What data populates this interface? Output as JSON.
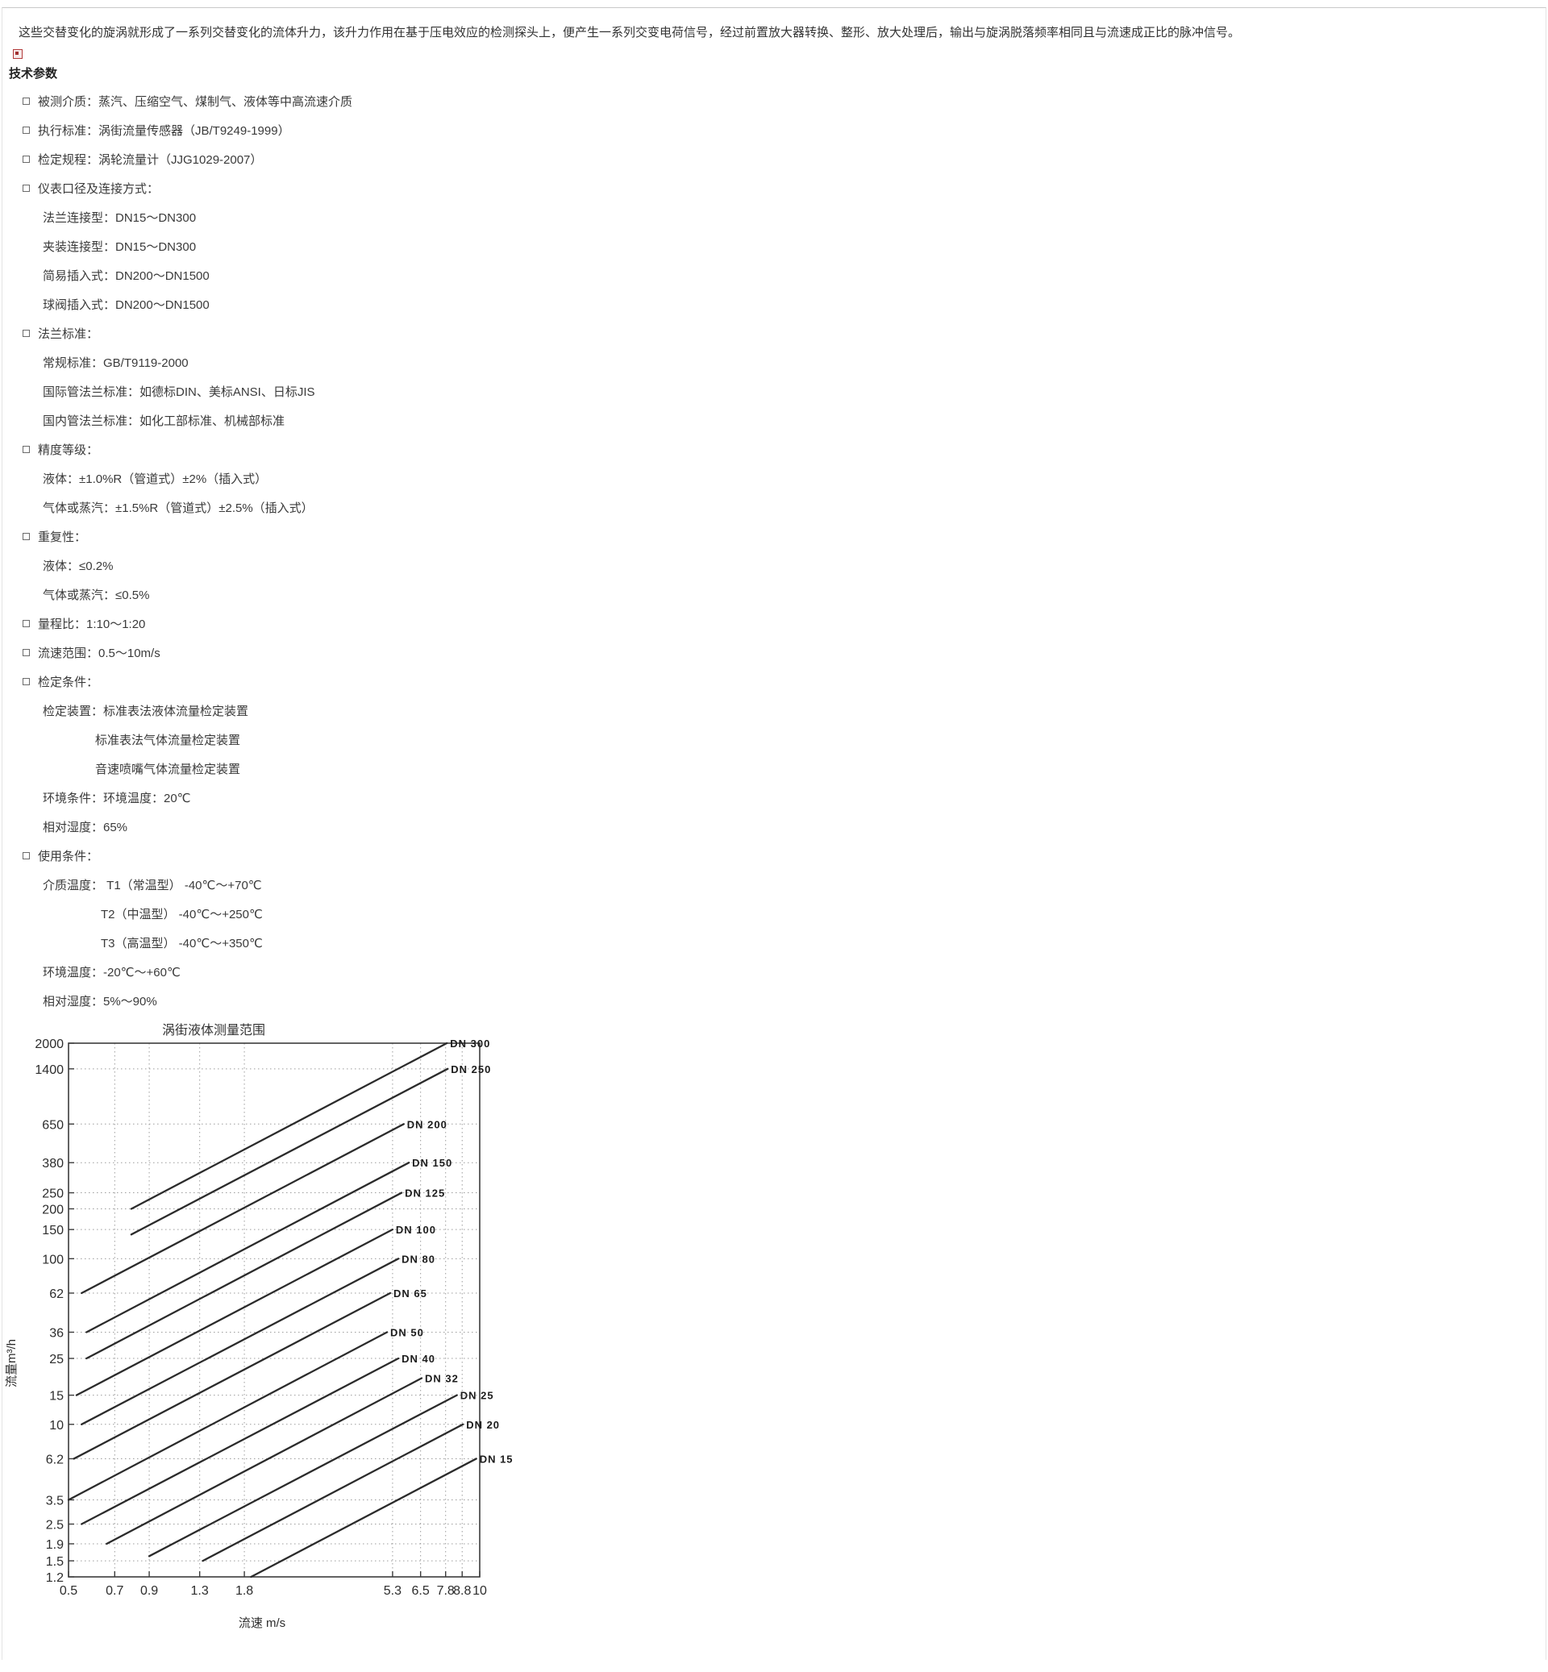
{
  "page": {
    "intro": "这些交替变化的旋涡就形成了一系列交替变化的流体升力，该升力作用在基于压电效应的检测探头上，便产生一系列交变电荷信号，经过前置放大器转换、整形、放大处理后，输出与旋涡脱落频率相同且与流速成正比的脉冲信号。",
    "section_title": "技术参数",
    "spec_items": [
      {
        "level": 1,
        "bullet": true,
        "text": "被测介质：蒸汽、压缩空气、煤制气、液体等中高流速介质"
      },
      {
        "level": 1,
        "bullet": true,
        "text": "执行标准：涡街流量传感器（JB/T9249-1999）"
      },
      {
        "level": 1,
        "bullet": true,
        "text": "检定规程：涡轮流量计（JJG1029-2007）"
      },
      {
        "level": 1,
        "bullet": true,
        "text": "仪表口径及连接方式："
      },
      {
        "level": 2,
        "bullet": false,
        "text": "法兰连接型：DN15～DN300"
      },
      {
        "level": 2,
        "bullet": false,
        "text": "夹装连接型：DN15～DN300"
      },
      {
        "level": 2,
        "bullet": false,
        "text": "简易插入式：DN200～DN1500"
      },
      {
        "level": 2,
        "bullet": false,
        "text": "球阀插入式：DN200～DN1500"
      },
      {
        "level": 1,
        "bullet": true,
        "text": "法兰标准："
      },
      {
        "level": 2,
        "bullet": false,
        "text": "常规标准：GB/T9119-2000"
      },
      {
        "level": 2,
        "bullet": false,
        "text": "国际管法兰标准：如德标DIN、美标ANSI、日标JIS"
      },
      {
        "level": 2,
        "bullet": false,
        "text": "国内管法兰标准：如化工部标准、机械部标准"
      },
      {
        "level": 1,
        "bullet": true,
        "text": "精度等级："
      },
      {
        "level": 2,
        "bullet": false,
        "text": "液体：±1.0%R（管道式）±2%（插入式）"
      },
      {
        "level": 2,
        "bullet": false,
        "text": "气体或蒸汽：±1.5%R（管道式）±2.5%（插入式）"
      },
      {
        "level": 1,
        "bullet": true,
        "text": "重复性："
      },
      {
        "level": 2,
        "bullet": false,
        "text": "液体：≤0.2%"
      },
      {
        "level": 2,
        "bullet": false,
        "text": "气体或蒸汽：≤0.5%"
      },
      {
        "level": 1,
        "bullet": true,
        "text": "量程比：1:10～1:20"
      },
      {
        "level": 1,
        "bullet": true,
        "text": "流速范围：0.5～10m/s"
      },
      {
        "level": 1,
        "bullet": true,
        "text": "检定条件："
      },
      {
        "level": 2,
        "bullet": false,
        "text": "检定装置：标准表法液体流量检定装置"
      },
      {
        "level": 3,
        "bullet": false,
        "text": "标准表法气体流量检定装置"
      },
      {
        "level": 3,
        "bullet": false,
        "text": "音速喷嘴气体流量检定装置"
      },
      {
        "level": 2,
        "bullet": false,
        "text": "环境条件：环境温度：20℃"
      },
      {
        "level": 2,
        "bullet": false,
        "text": "相对湿度：65%"
      },
      {
        "level": 1,
        "bullet": true,
        "text": "使用条件："
      },
      {
        "level": 2,
        "bullet": false,
        "text": "介质温度： T1（常温型） -40℃～+70℃"
      },
      {
        "level": 4,
        "bullet": false,
        "text": "T2（中温型） -40℃～+250℃"
      },
      {
        "level": 4,
        "bullet": false,
        "text": "T3（高温型） -40℃～+350℃"
      },
      {
        "level": 2,
        "bullet": false,
        "text": "环境温度：-20℃～+60℃"
      },
      {
        "level": 2,
        "bullet": false,
        "text": "相对湿度：5%～90%"
      }
    ]
  },
  "chart_data": {
    "type": "line",
    "title": "涡街液体测量范围",
    "xlabel": "流速 m/s",
    "ylabel": "流量m³/h",
    "xscale": "log",
    "yscale": "log",
    "xlim": [
      0.5,
      10
    ],
    "ylim": [
      1.2,
      2000
    ],
    "xticks": [
      0.5,
      0.7,
      0.9,
      1.3,
      1.8,
      5.3,
      6.5,
      7.8,
      8.8,
      10
    ],
    "yticks": [
      2000,
      1400,
      650,
      380,
      250,
      200,
      150,
      100,
      62,
      36,
      25,
      15,
      10,
      6.2,
      3.5,
      2.5,
      1.9,
      1.5,
      1.2
    ],
    "grid": "dotted",
    "legend_position": "line-end-labels",
    "series": [
      {
        "name": "DN 300",
        "points": [
          [
            0.79,
            200
          ],
          [
            7.87,
            2000
          ]
        ]
      },
      {
        "name": "DN 250",
        "points": [
          [
            0.79,
            140
          ],
          [
            7.92,
            1400
          ]
        ]
      },
      {
        "name": "DN 200",
        "points": [
          [
            0.55,
            62
          ],
          [
            5.75,
            650
          ]
        ]
      },
      {
        "name": "DN 150",
        "points": [
          [
            0.57,
            36
          ],
          [
            5.97,
            380
          ]
        ]
      },
      {
        "name": "DN 125",
        "points": [
          [
            0.57,
            25
          ],
          [
            5.66,
            250
          ]
        ]
      },
      {
        "name": "DN 100",
        "points": [
          [
            0.53,
            15
          ],
          [
            5.3,
            150
          ]
        ]
      },
      {
        "name": "DN 80",
        "points": [
          [
            0.55,
            10
          ],
          [
            5.53,
            100
          ]
        ]
      },
      {
        "name": "DN 65",
        "points": [
          [
            0.52,
            6.2
          ],
          [
            5.21,
            62
          ]
        ]
      },
      {
        "name": "DN 50",
        "points": [
          [
            0.5,
            3.5
          ],
          [
            5.09,
            36
          ]
        ]
      },
      {
        "name": "DN 40",
        "points": [
          [
            0.55,
            2.5
          ],
          [
            5.53,
            25
          ]
        ]
      },
      {
        "name": "DN 32",
        "points": [
          [
            0.66,
            1.9
          ],
          [
            6.55,
            19
          ]
        ]
      },
      {
        "name": "DN 25",
        "points": [
          [
            0.9,
            1.6
          ],
          [
            8.47,
            15
          ]
        ]
      },
      {
        "name": "DN 20",
        "points": [
          [
            1.33,
            1.5
          ],
          [
            8.85,
            10
          ]
        ]
      },
      {
        "name": "DN 15",
        "points": [
          [
            1.89,
            1.2
          ],
          [
            9.75,
            6.2
          ]
        ]
      }
    ]
  }
}
